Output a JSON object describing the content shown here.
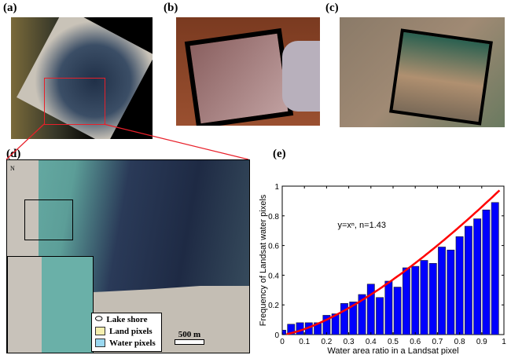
{
  "panels": {
    "a": "(a)",
    "b": "(b)",
    "c": "(c)",
    "d": "(d)",
    "e": "(e)"
  },
  "map_d": {
    "north": "N",
    "scale": "500 m",
    "legend": [
      {
        "label": "Lake shore",
        "icon": "lake-shore-outline-icon"
      },
      {
        "label": "Land pixels",
        "color": "#f5f0b0"
      },
      {
        "label": "Water pixels",
        "color": "#9ad8f0"
      }
    ]
  },
  "colors": {
    "bars": "#0000ff",
    "curve": "#ff0000",
    "highlight_box": "#e8202a"
  },
  "chart_data": {
    "type": "bar",
    "xlabel": "Water area ratio in a Landsat pixel",
    "ylabel": "Frequency of Landsat water pixels",
    "annotation": "y=xⁿ, n=1.43",
    "xlim": [
      0,
      1
    ],
    "ylim": [
      0,
      1
    ],
    "xticks": [
      "0",
      "0.1",
      "0.2",
      "0.3",
      "0.4",
      "0.5",
      "0.6",
      "0.7",
      "0.8",
      "0.9",
      "1"
    ],
    "yticks": [
      "0",
      "0.2",
      "0.4",
      "0.6",
      "0.8",
      "1"
    ],
    "x": [
      0,
      0.04,
      0.08,
      0.12,
      0.16,
      0.2,
      0.24,
      0.28,
      0.32,
      0.36,
      0.4,
      0.44,
      0.48,
      0.52,
      0.56,
      0.6,
      0.64,
      0.68,
      0.72,
      0.76,
      0.8,
      0.84,
      0.88,
      0.92,
      0.96
    ],
    "values": [
      0.03,
      0.07,
      0.08,
      0.08,
      0.08,
      0.13,
      0.14,
      0.21,
      0.22,
      0.27,
      0.34,
      0.25,
      0.36,
      0.32,
      0.45,
      0.46,
      0.5,
      0.48,
      0.59,
      0.57,
      0.66,
      0.73,
      0.78,
      0.84,
      0.89
    ],
    "fit": {
      "type": "power",
      "n": 1.43,
      "x_range": [
        0.02,
        0.98
      ]
    }
  }
}
